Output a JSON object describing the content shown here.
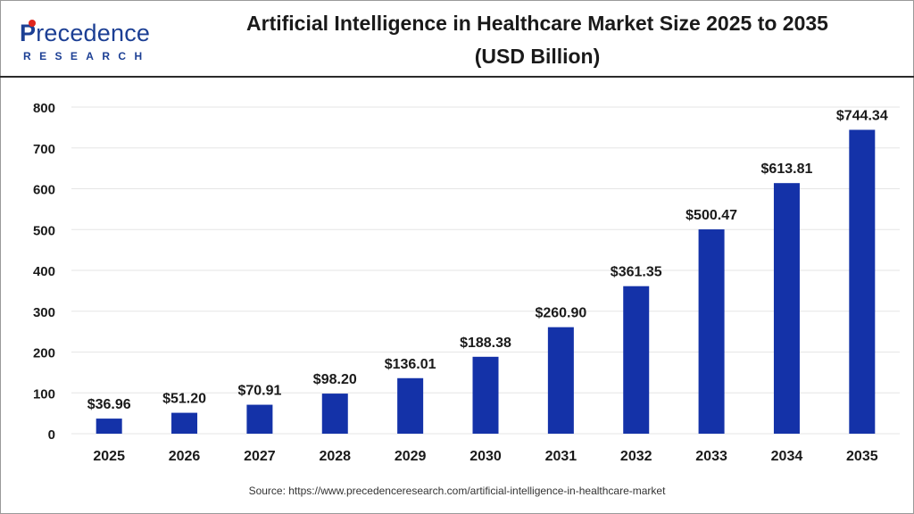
{
  "brand": {
    "name_main": "recedence",
    "name_initial": "P",
    "name_sub": "RESEARCH",
    "color": "#1c3f94",
    "accent": "#e1261c"
  },
  "title_line1": "Artificial Intelligence in Healthcare Market Size 2025 to 2035",
  "title_line2": "(USD Billion)",
  "source": "Source: https://www.precedenceresearch.com/artificial-intelligence-in-healthcare-market",
  "chart_data": {
    "type": "bar",
    "categories": [
      "2025",
      "2026",
      "2027",
      "2028",
      "2029",
      "2030",
      "2031",
      "2032",
      "2033",
      "2034",
      "2035"
    ],
    "values": [
      36.96,
      51.2,
      70.91,
      98.2,
      136.01,
      188.38,
      260.9,
      361.35,
      500.47,
      613.81,
      744.34
    ],
    "data_labels": [
      "$36.96",
      "$51.20",
      "$70.91",
      "$98.20",
      "$136.01",
      "$188.38",
      "$260.90",
      "$361.35",
      "$500.47",
      "$613.81",
      "$744.34"
    ],
    "yticks": [
      0,
      100,
      200,
      300,
      400,
      500,
      600,
      700,
      800
    ],
    "ylim": [
      0,
      800
    ],
    "bar_color": "#1432a8",
    "grid": true,
    "legend": "none"
  }
}
